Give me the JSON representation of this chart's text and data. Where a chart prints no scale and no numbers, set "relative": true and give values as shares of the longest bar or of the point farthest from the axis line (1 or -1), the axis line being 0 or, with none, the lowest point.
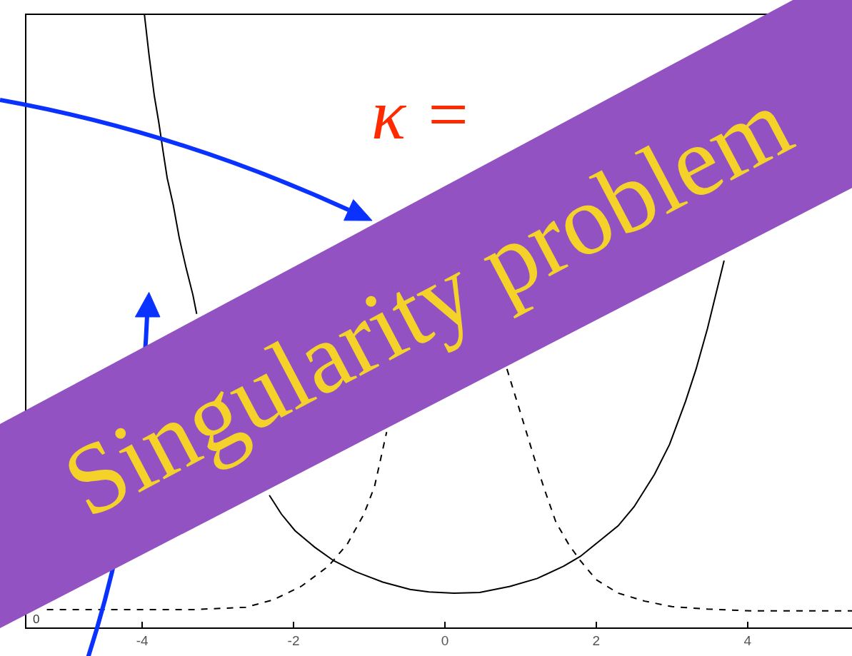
{
  "chart_data": {
    "type": "line",
    "title": "Singularity problem",
    "annotations": [
      "κ =",
      "0"
    ],
    "relative": true,
    "tick_labels": "x",
    "xlim": [
      -5.53,
      5.38
    ],
    "xticks": [
      -4,
      -2,
      0,
      2,
      4
    ],
    "series": [
      {
        "color": "#000000",
        "line_style": "solid",
        "x": [
          -3.97,
          -3.91,
          -3.84,
          -3.78,
          -3.72,
          -3.67,
          -3.59,
          -3.51,
          -3.42,
          -3.33,
          -3.28,
          -2.8,
          -2.32,
          -2.16,
          -1.98,
          -1.72,
          -1.47,
          -1.18,
          -0.82,
          -0.46,
          -0.21,
          0.12,
          0.46,
          0.86,
          1.22,
          1.57,
          1.79,
          2.07,
          2.29,
          2.5,
          2.77,
          2.97,
          3.18,
          3.32,
          3.47,
          3.69
        ],
        "values": [
          1.0,
          0.935,
          0.868,
          0.824,
          0.774,
          0.734,
          0.69,
          0.636,
          0.587,
          0.543,
          0.512,
          null,
          0.216,
          0.185,
          0.158,
          0.131,
          0.109,
          0.091,
          0.074,
          0.062,
          0.058,
          0.056,
          0.057,
          0.067,
          0.08,
          0.1,
          0.116,
          0.144,
          0.166,
          0.197,
          0.25,
          0.299,
          0.369,
          0.422,
          0.488,
          0.599
        ]
      },
      {
        "color": "#000000",
        "line_style": "dashed",
        "x": [
          -5.26,
          -3.35,
          -2.63,
          -2.27,
          -1.9,
          -1.54,
          -1.29,
          -1.07,
          -0.93,
          -0.77,
          0.03,
          0.82,
          0.93,
          1.04,
          1.18,
          1.32,
          1.47,
          1.64,
          1.79,
          2.0,
          2.29,
          2.64,
          3.0,
          3.47,
          4.07,
          5.38
        ],
        "values": [
          0.029,
          0.029,
          0.033,
          0.045,
          0.067,
          0.1,
          0.136,
          0.185,
          0.23,
          0.319,
          null,
          0.422,
          0.378,
          0.334,
          0.277,
          0.224,
          0.171,
          0.135,
          0.109,
          0.078,
          0.056,
          0.043,
          0.034,
          0.03,
          0.027,
          0.027
        ]
      }
    ]
  }
}
